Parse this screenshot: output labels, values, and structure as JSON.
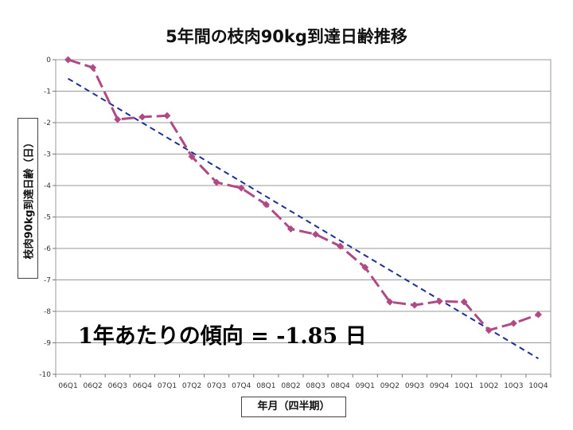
{
  "chart_data": {
    "type": "line",
    "title": "5年間の枝肉90kg到達日齢推移",
    "xlabel": "年月（四半期）",
    "ylabel": "枝肉90kg到達日齢（日）",
    "categories": [
      "06Q1",
      "06Q2",
      "06Q3",
      "06Q4",
      "07Q1",
      "07Q2",
      "07Q3",
      "07Q4",
      "08Q1",
      "08Q2",
      "08Q3",
      "08Q4",
      "09Q1",
      "09Q2",
      "09Q3",
      "09Q4",
      "10Q1",
      "10Q2",
      "10Q3",
      "10Q4"
    ],
    "series": [
      {
        "values": [
          0,
          -0.25,
          -1.9,
          -1.82,
          -1.78,
          -3.08,
          -3.9,
          -4.08,
          -4.6,
          -5.38,
          -5.55,
          -5.93,
          -6.6,
          -7.7,
          -7.8,
          -7.68,
          -7.7,
          -8.6,
          -8.38,
          -8.1
        ],
        "color": "#b04a84",
        "style": "dashed-with-diamond-markers"
      }
    ],
    "trendline": {
      "start": -0.6,
      "end": -9.5,
      "color": "#1f2f9a",
      "style": "dashed"
    },
    "annotation": "1年あたりの傾向 = -1.85 日",
    "ylim": [
      -10,
      0
    ],
    "yticks": [
      0,
      -1,
      -2,
      -3,
      -4,
      -5,
      -6,
      -7,
      -8,
      -9,
      -10
    ],
    "grid": true,
    "legend": "none"
  }
}
